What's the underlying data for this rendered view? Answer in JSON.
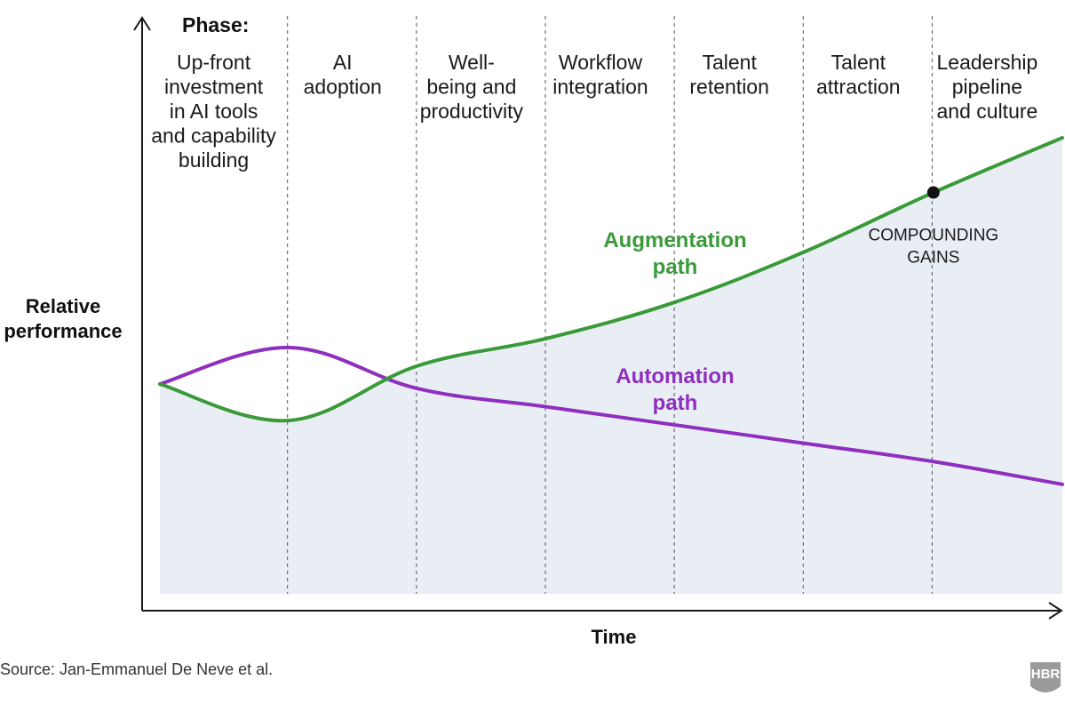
{
  "chart_data": {
    "type": "line",
    "phase_header": "Phase:",
    "phases": [
      [
        "Up-front",
        "investment",
        "in AI tools",
        "and capability",
        "building"
      ],
      [
        "AI",
        "adoption"
      ],
      [
        "Well-",
        "being and",
        "productivity"
      ],
      [
        "Workflow",
        "integration"
      ],
      [
        "Talent",
        "retention"
      ],
      [
        "Talent",
        "attraction"
      ],
      [
        "Leadership",
        "pipeline",
        "and culture"
      ]
    ],
    "ylabel": [
      "Relative",
      "performance"
    ],
    "xlabel": "Time",
    "x_range": [
      0,
      7
    ],
    "y_range": [
      0,
      10
    ],
    "series": [
      {
        "name": [
          "Augmentation",
          "path"
        ],
        "color": "#3a9a3a",
        "points": [
          [
            0,
            4.6
          ],
          [
            1,
            3.8
          ],
          [
            2,
            5.0
          ],
          [
            3,
            5.6
          ],
          [
            4,
            6.4
          ],
          [
            5,
            7.5
          ],
          [
            6,
            8.8
          ],
          [
            7,
            10.0
          ]
        ]
      },
      {
        "name": [
          "Automation",
          "path"
        ],
        "color": "#8e2fbf",
        "points": [
          [
            0,
            4.6
          ],
          [
            1,
            5.4
          ],
          [
            2,
            4.5
          ],
          [
            3,
            4.1
          ],
          [
            4,
            3.7
          ],
          [
            5,
            3.3
          ],
          [
            6,
            2.9
          ],
          [
            7,
            2.4
          ]
        ]
      }
    ],
    "fill_under": "Augmentation path",
    "fill_color": "#e9edf4",
    "annotation": {
      "text": [
        "COMPOUNDING",
        "GAINS"
      ],
      "x": 6,
      "y": 8.8
    }
  },
  "source": "Source: Jan-Emmanuel De Neve et al.",
  "logo": "HBR"
}
